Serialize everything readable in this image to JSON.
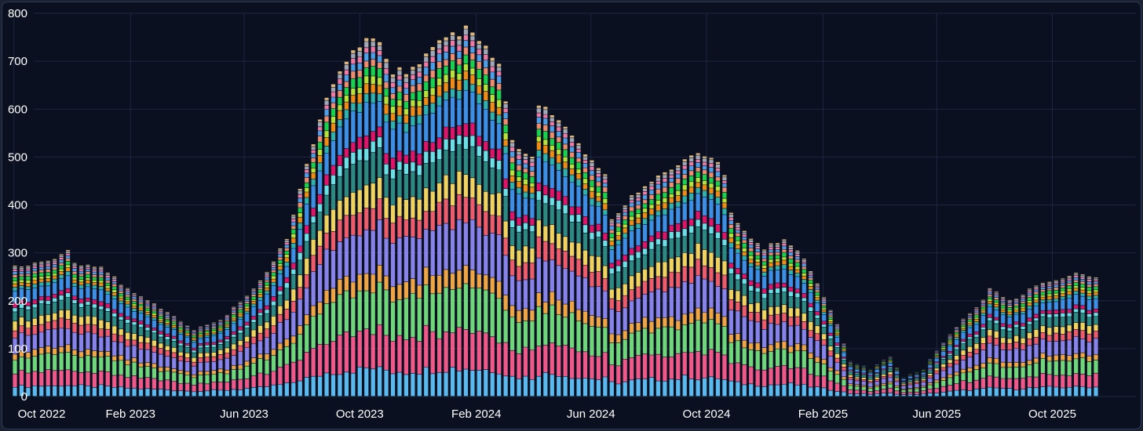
{
  "chart_data": {
    "type": "bar",
    "stacked": true,
    "title": "",
    "xlabel": "",
    "ylabel": "",
    "ylim": [
      0,
      800
    ],
    "y_ticks": [
      0,
      100,
      200,
      300,
      400,
      500,
      600,
      700,
      800
    ],
    "x_tick_labels": [
      "Oct 2022",
      "Feb 2023",
      "Jun 2023",
      "Oct 2023",
      "Feb 2024",
      "Jun 2024",
      "Oct 2024",
      "Feb 2025",
      "Jun 2025",
      "Oct 2025"
    ],
    "grid": true,
    "legend": "none",
    "x_range": [
      "2022-10-02",
      "2025-11-16"
    ],
    "frequency": "weekly",
    "totals_anchor_points": [
      [
        "2022-10-02",
        270
      ],
      [
        "2022-11-13",
        290
      ],
      [
        "2022-11-27",
        305
      ],
      [
        "2022-12-04",
        275
      ],
      [
        "2023-01-01",
        270
      ],
      [
        "2023-01-29",
        225
      ],
      [
        "2023-03-05",
        185
      ],
      [
        "2023-04-09",
        140
      ],
      [
        "2023-05-07",
        160
      ],
      [
        "2023-06-04",
        210
      ],
      [
        "2023-06-25",
        260
      ],
      [
        "2023-07-16",
        330
      ],
      [
        "2023-08-06",
        490
      ],
      [
        "2023-08-27",
        620
      ],
      [
        "2023-09-17",
        700
      ],
      [
        "2023-10-01",
        740
      ],
      [
        "2023-10-22",
        745
      ],
      [
        "2023-11-05",
        680
      ],
      [
        "2023-11-26",
        680
      ],
      [
        "2023-12-17",
        720
      ],
      [
        "2024-01-07",
        760
      ],
      [
        "2024-01-28",
        765
      ],
      [
        "2024-02-11",
        735
      ],
      [
        "2024-02-25",
        700
      ],
      [
        "2024-03-10",
        530
      ],
      [
        "2024-03-31",
        495
      ],
      [
        "2024-04-07",
        610
      ],
      [
        "2024-04-21",
        595
      ],
      [
        "2024-05-12",
        550
      ],
      [
        "2024-06-02",
        490
      ],
      [
        "2024-06-16",
        460
      ],
      [
        "2024-06-23",
        365
      ],
      [
        "2024-07-14",
        420
      ],
      [
        "2024-08-11",
        465
      ],
      [
        "2024-09-01",
        480
      ],
      [
        "2024-09-22",
        505
      ],
      [
        "2024-10-06",
        500
      ],
      [
        "2024-10-20",
        465
      ],
      [
        "2024-10-27",
        385
      ],
      [
        "2024-11-10",
        345
      ],
      [
        "2024-12-01",
        310
      ],
      [
        "2024-12-22",
        330
      ],
      [
        "2025-01-12",
        290
      ],
      [
        "2025-02-02",
        210
      ],
      [
        "2025-02-16",
        150
      ],
      [
        "2025-03-02",
        75
      ],
      [
        "2025-03-23",
        60
      ],
      [
        "2025-04-13",
        85
      ],
      [
        "2025-04-27",
        45
      ],
      [
        "2025-05-18",
        60
      ],
      [
        "2025-06-08",
        115
      ],
      [
        "2025-06-29",
        160
      ],
      [
        "2025-07-20",
        200
      ],
      [
        "2025-07-27",
        225
      ],
      [
        "2025-08-17",
        200
      ],
      [
        "2025-09-14",
        230
      ],
      [
        "2025-10-05",
        245
      ],
      [
        "2025-10-26",
        255
      ],
      [
        "2025-11-16",
        250
      ]
    ],
    "series": [
      {
        "color": "#5ab9ee",
        "share": 0.075
      },
      {
        "color": "#f0588a",
        "share": 0.105
      },
      {
        "color": "#6fd67a",
        "share": 0.115
      },
      {
        "color": "#f0a545",
        "share": 0.045
      },
      {
        "color": "#8883ea",
        "share": 0.125
      },
      {
        "color": "#ee5c6c",
        "share": 0.06
      },
      {
        "color": "#f0d35e",
        "share": 0.06
      },
      {
        "color": "#2d8a82",
        "share": 0.075
      },
      {
        "color": "#6ae0e4",
        "share": 0.03
      },
      {
        "color": "#e0156a",
        "share": 0.03
      },
      {
        "color": "#3c8fe4",
        "share": 0.08
      },
      {
        "color": "#2fb2ae",
        "share": 0.025
      },
      {
        "color": "#f08c14",
        "share": 0.025
      },
      {
        "color": "#b8e23a",
        "share": 0.02
      },
      {
        "color": "#18d24e",
        "share": 0.025
      },
      {
        "color": "#ef8c6e",
        "share": 0.02
      },
      {
        "color": "#4d9fe8",
        "share": 0.02
      },
      {
        "color": "#f07aa4",
        "share": 0.015
      },
      {
        "color": "#a0a8b8",
        "share": 0.015
      },
      {
        "color": "#d9b47c",
        "share": 0.01
      }
    ]
  }
}
